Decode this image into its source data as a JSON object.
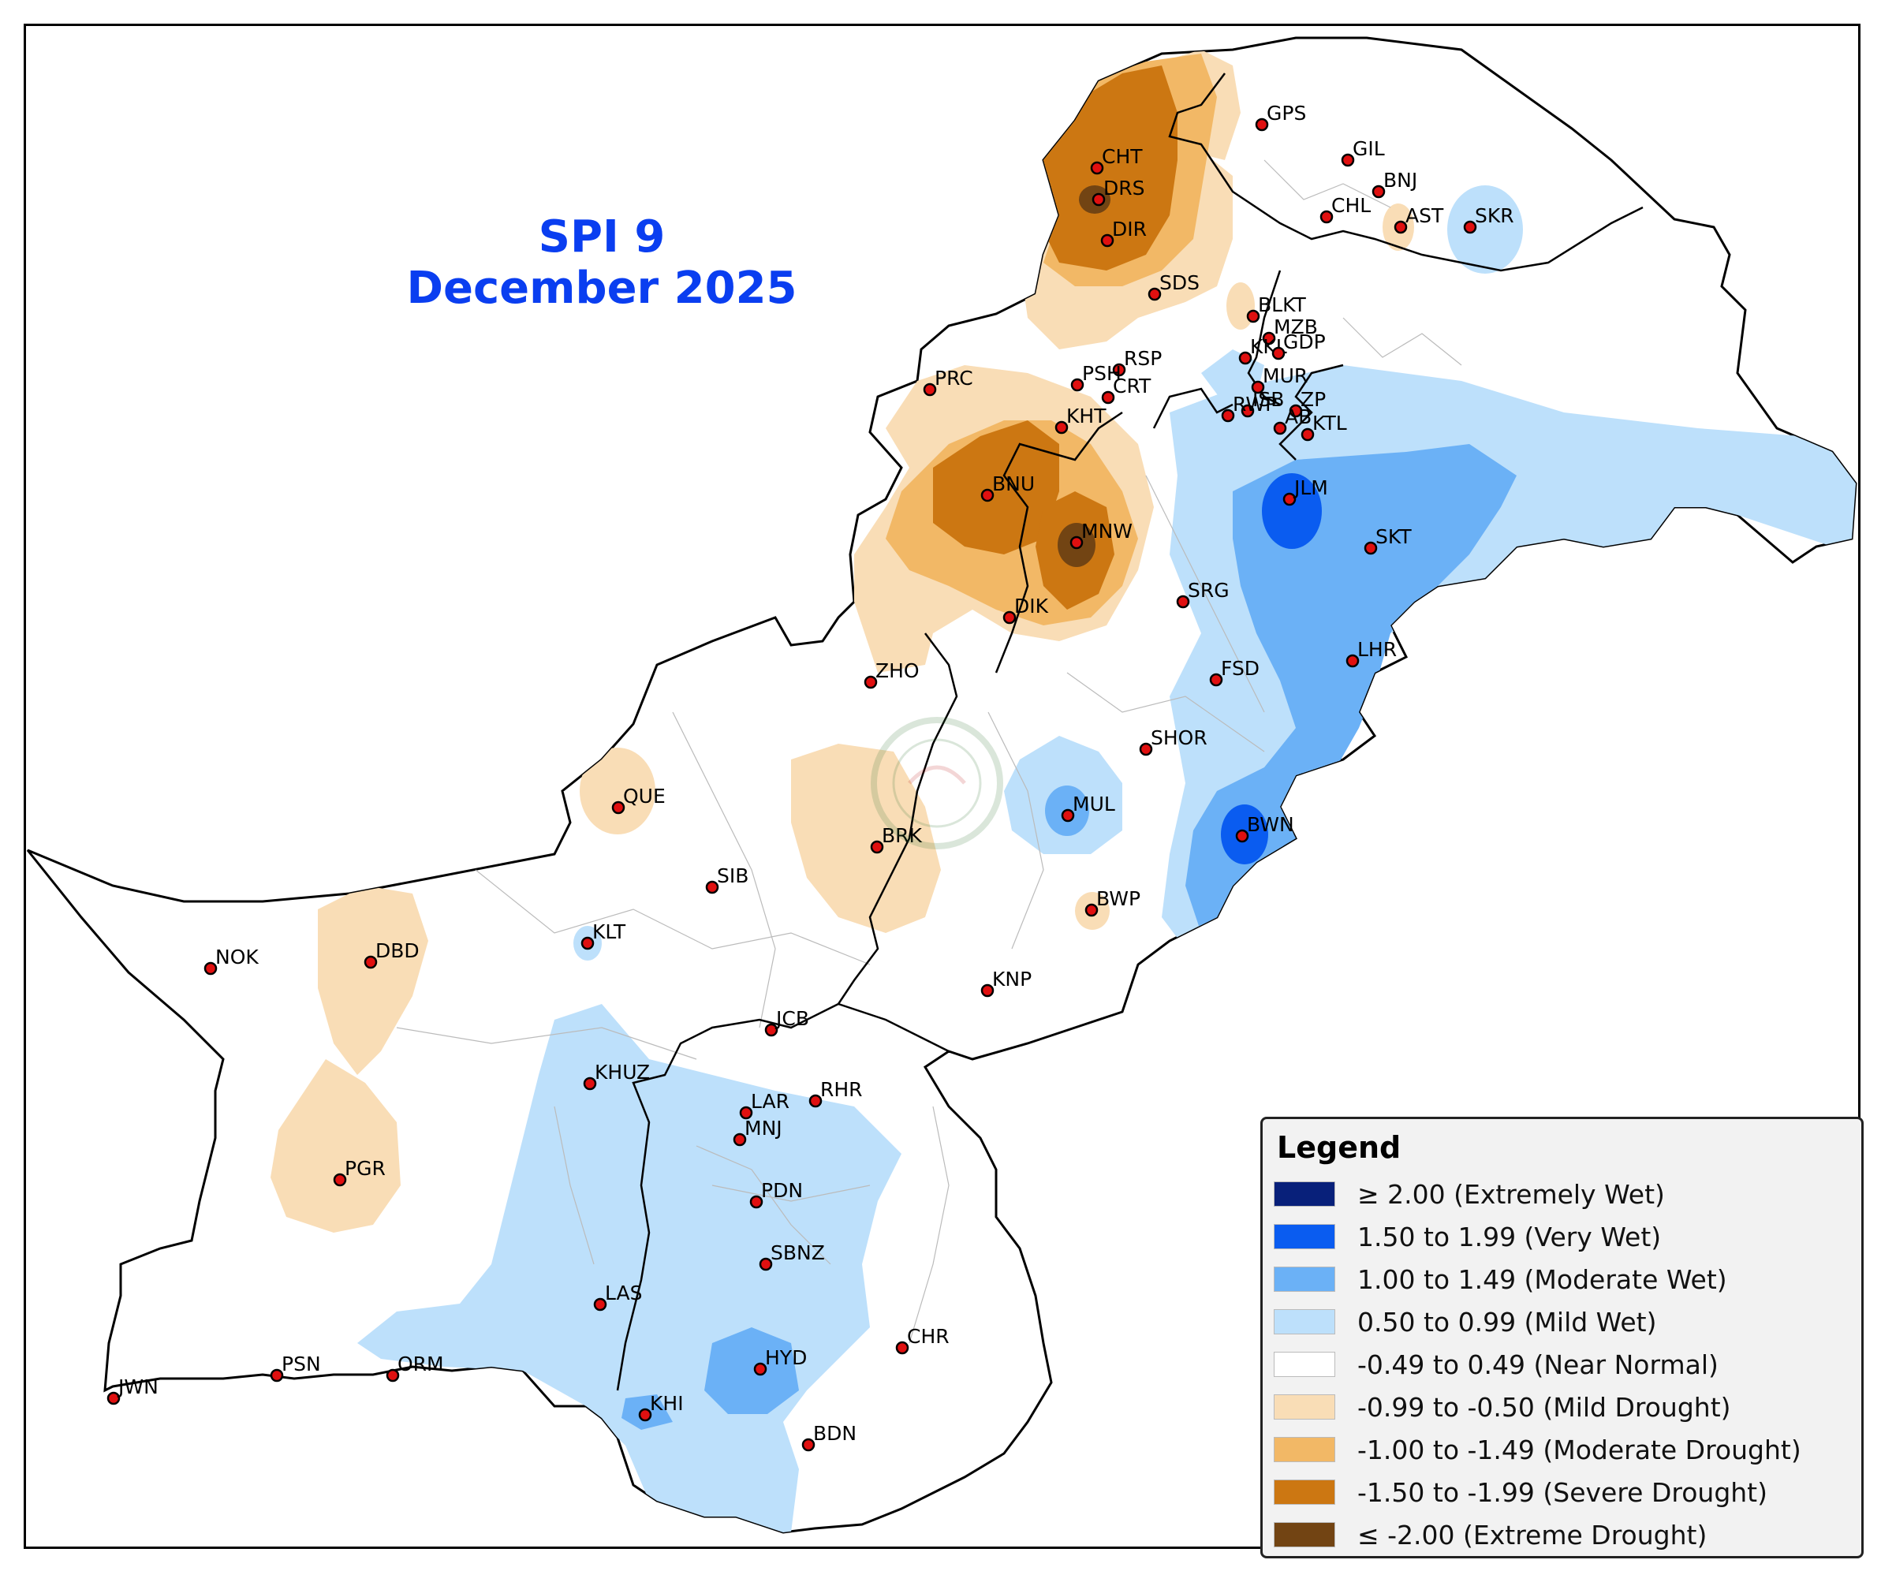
{
  "title": {
    "line1": "SPI 9",
    "line2": "December 2025"
  },
  "legend": {
    "title": "Legend",
    "items": [
      {
        "label": "≥ 2.00 (Extremely Wet)",
        "color": "#08207a"
      },
      {
        "label": "1.50 to 1.99 (Very Wet)",
        "color": "#0a5cf0"
      },
      {
        "label": "1.00 to 1.49 (Moderate Wet)",
        "color": "#6bb1f6"
      },
      {
        "label": "0.50 to 0.99 (Mild Wet)",
        "color": "#bde0fb"
      },
      {
        "label": "-0.49 to 0.49 (Near Normal)",
        "color": "#ffffff"
      },
      {
        "label": "-0.99 to -0.50 (Mild Drought)",
        "color": "#f9ddb6"
      },
      {
        "label": "-1.00 to -1.49 (Moderate Drought)",
        "color": "#f2b866"
      },
      {
        "label": "-1.50 to -1.99 (Severe Drought)",
        "color": "#cc7712"
      },
      {
        "label": "≤ -2.00 (Extreme Drought)",
        "color": "#724413"
      }
    ]
  },
  "stations": [
    "GPS",
    "GIL",
    "CHT",
    "BNJ",
    "DRS",
    "AST",
    "SKR",
    "CHL",
    "DIR",
    "SDS",
    "BLKT",
    "MZB",
    "KKL",
    "GDP",
    "RSP",
    "MUR",
    "PSH",
    "PRC",
    "CRT",
    "ISB",
    "ZP",
    "RWP",
    "AB",
    "KTL",
    "KHT",
    "BNU",
    "JLM",
    "MNW",
    "SKT",
    "DIK",
    "SRG",
    "LHR",
    "ZHO",
    "FSD",
    "SHOR",
    "QUE",
    "MUL",
    "BWN",
    "BRK",
    "SIB",
    "BWP",
    "KLT",
    "NOK",
    "DBD",
    "KNP",
    "JCB",
    "KHUZ",
    "RHR",
    "LAR",
    "MNJ",
    "PGR",
    "PDN",
    "SBNZ",
    "LAS",
    "CHR",
    "PSN",
    "ORM",
    "HYD",
    "JWN",
    "KHI",
    "BDN"
  ]
}
